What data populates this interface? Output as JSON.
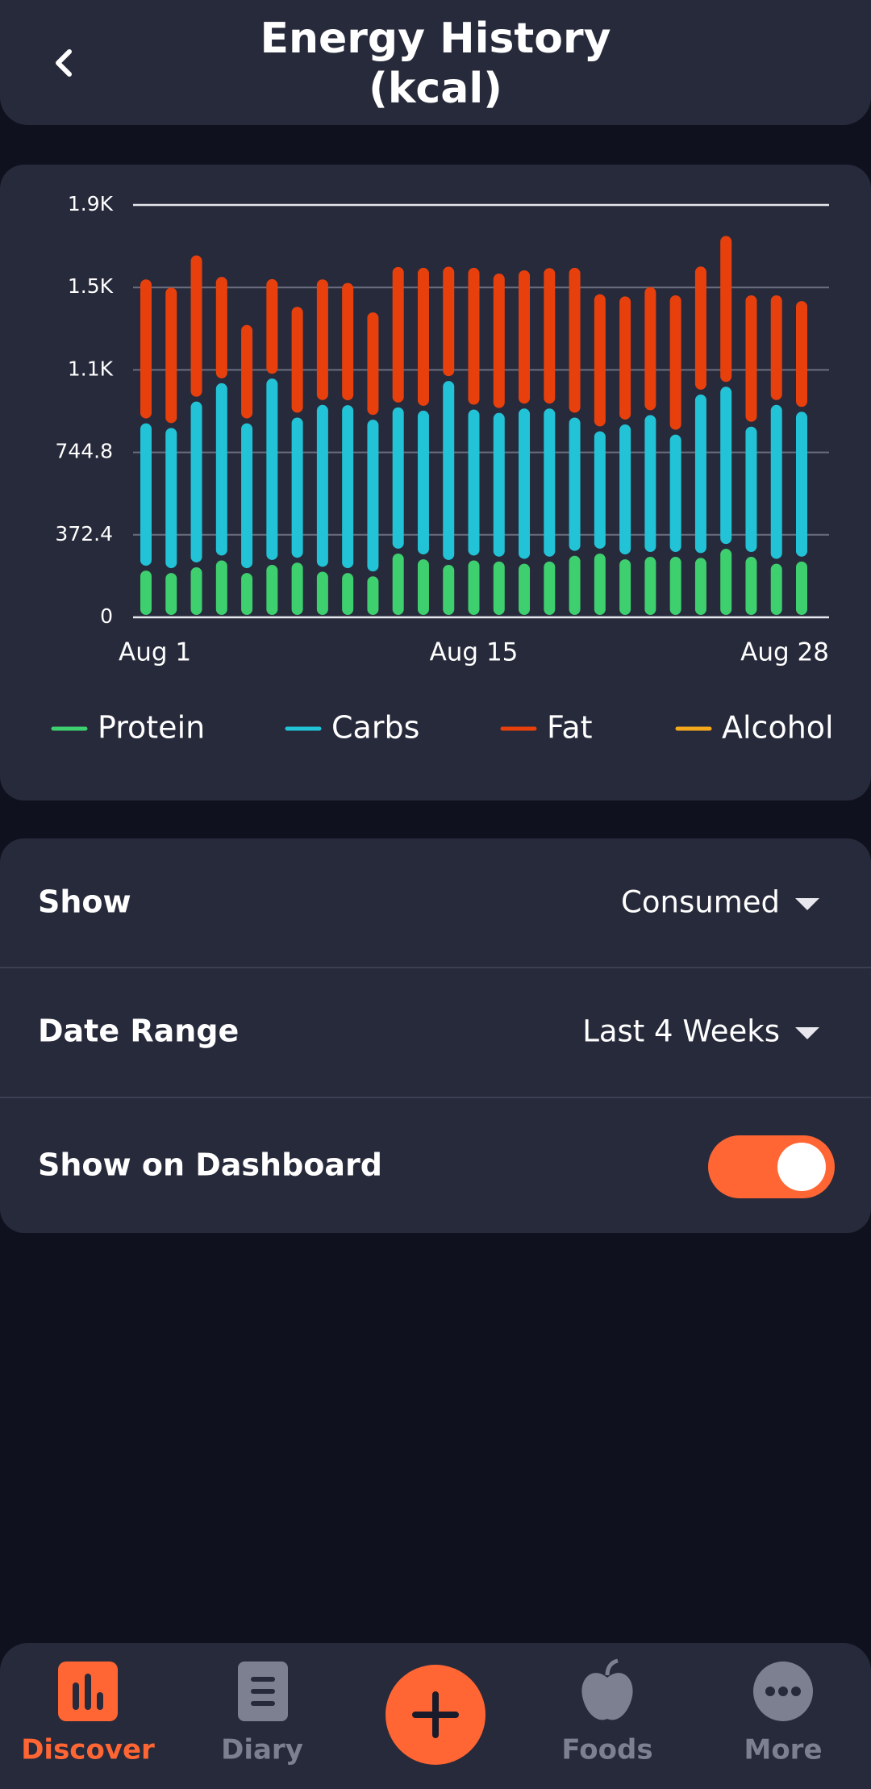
{
  "header": {
    "title_lines": [
      "Energy History",
      "(kcal)"
    ]
  },
  "chart_data": {
    "type": "bar",
    "stacked": true,
    "categories": [
      "Aug 1",
      null,
      null,
      null,
      null,
      null,
      null,
      null,
      null,
      null,
      null,
      null,
      null,
      "Aug 15",
      null,
      null,
      null,
      null,
      null,
      null,
      null,
      null,
      null,
      null,
      null,
      null,
      "Aug 28"
    ],
    "series": [
      {
        "name": "Protein",
        "color": "#3ecf6e",
        "values": [
          222,
          211,
          237,
          268,
          211,
          248,
          258,
          217,
          211,
          196,
          299,
          273,
          248,
          268,
          263,
          253,
          263,
          289,
          299,
          273,
          284,
          284,
          279,
          320,
          284,
          253,
          263
        ]
      },
      {
        "name": "Carbs",
        "color": "#22c3d6",
        "values": [
          665,
          655,
          748,
          800,
          676,
          841,
          655,
          753,
          758,
          707,
          660,
          671,
          830,
          681,
          671,
          701,
          691,
          624,
          552,
          609,
          640,
          552,
          738,
          732,
          588,
          717,
          676
        ]
      },
      {
        "name": "Fat",
        "color": "#e8400c",
        "values": [
          650,
          634,
          660,
          480,
          444,
          449,
          500,
          567,
          552,
          485,
          634,
          645,
          516,
          640,
          629,
          624,
          634,
          676,
          619,
          578,
          578,
          629,
          578,
          681,
          593,
          495,
          500
        ]
      },
      {
        "name": "Alcohol",
        "color": "#f4a81c",
        "values": [
          0,
          0,
          0,
          0,
          0,
          0,
          0,
          0,
          0,
          0,
          0,
          0,
          0,
          0,
          0,
          0,
          0,
          0,
          0,
          0,
          0,
          0,
          0,
          0,
          0,
          0,
          0
        ]
      }
    ],
    "ylim": [
      0,
      1862
    ],
    "yticks": [
      0,
      372.4,
      744.8,
      {
        "value": 1117.2,
        "label": "1.1K"
      },
      {
        "value": 1489.6,
        "label": "1.5K"
      },
      {
        "value": 1862,
        "label": "1.9K"
      }
    ],
    "grid": true
  },
  "settings": [
    {
      "label": "Show",
      "value": "Consumed"
    },
    {
      "label": "Date Range",
      "value": "Last 4 Weeks"
    },
    {
      "label": "Show on Dashboard",
      "toggle": true
    }
  ],
  "nav": {
    "items": [
      "Discover",
      "Diary",
      "Foods",
      "More"
    ],
    "active": "Discover"
  }
}
